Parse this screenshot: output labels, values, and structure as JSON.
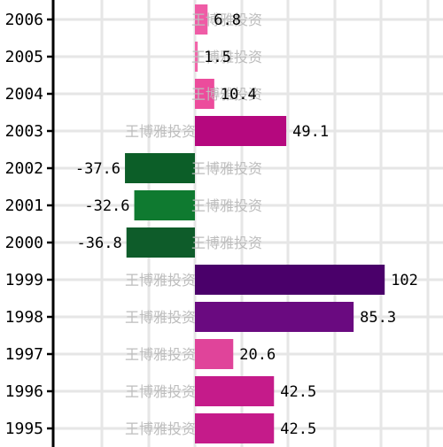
{
  "chart_data": {
    "type": "bar",
    "orientation": "horizontal",
    "categories": [
      "1995",
      "1996",
      "1997",
      "1998",
      "1999",
      "2000",
      "2001",
      "2002",
      "2003",
      "2004",
      "2005",
      "2006"
    ],
    "values": [
      42.5,
      42.5,
      20.6,
      85.3,
      102,
      -36.8,
      -32.6,
      -37.6,
      49.1,
      10.4,
      1.5,
      6.8
    ],
    "value_labels": [
      "42.5",
      "42.5",
      "20.6",
      "85.3",
      "102",
      "-36.8",
      "-32.6",
      "-37.6",
      "49.1",
      "10.4",
      "1.5",
      "6.8"
    ],
    "bar_colors": [
      "#c51b8a",
      "#c51b8a",
      "#e0449a",
      "#6a0a80",
      "#4a006a",
      "#0e5c2a",
      "#0f7a30",
      "#0c5e28",
      "#b5087e",
      "#ec4c9c",
      "#f266aa",
      "#ef5ca6"
    ],
    "xlim": [
      -75,
      125
    ],
    "grid": true,
    "watermark": "王博雅投资"
  }
}
